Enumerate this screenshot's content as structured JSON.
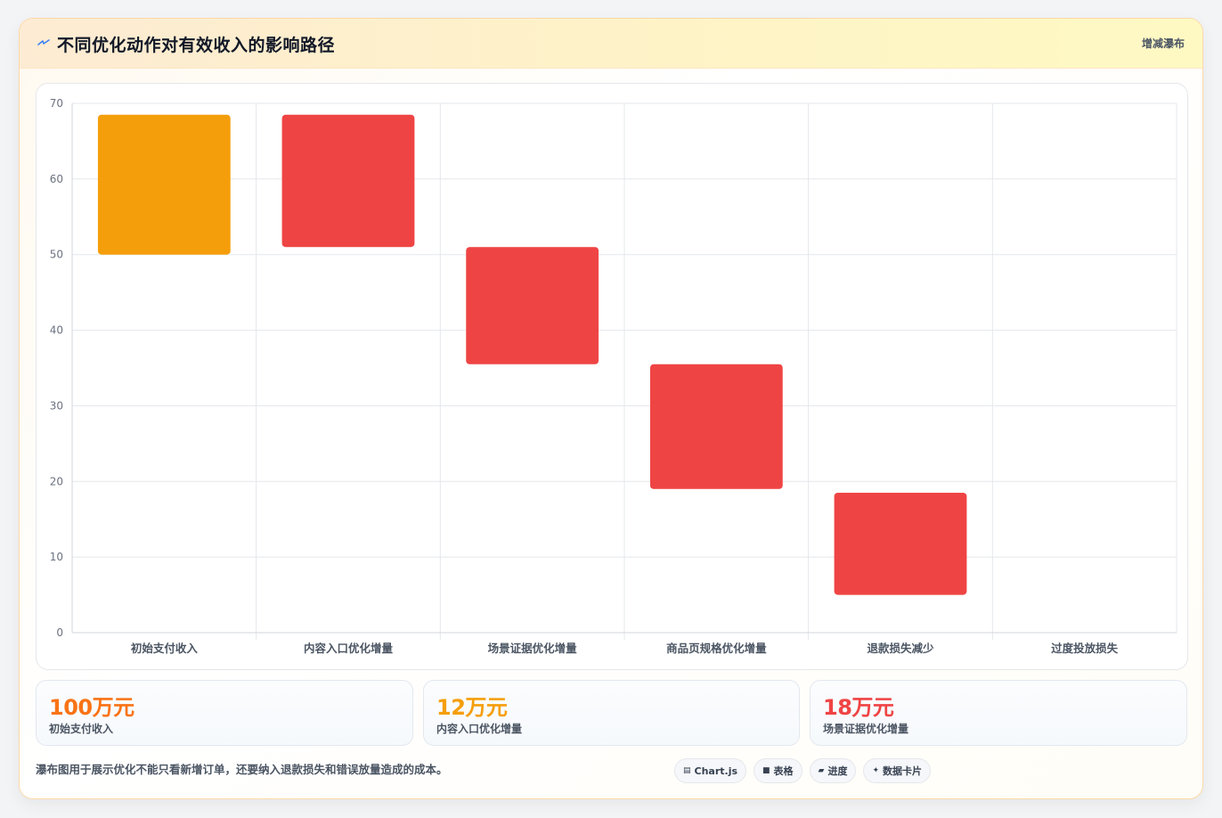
{
  "header": {
    "icon": "lightning-icon",
    "title": "不同优化动作对有效收入的影响路径",
    "tag": "增减瀑布"
  },
  "colors": {
    "base": "#f59e0b",
    "decrease": "#ef4444",
    "grid": "#e5e7eb",
    "tick": "#6b7280"
  },
  "chart_data": {
    "type": "bar",
    "subtype": "floating-waterfall",
    "categories": [
      "初始支付收入",
      "内容入口优化增量",
      "场景证据优化增量",
      "商品页规格优化增量",
      "退款损失减少",
      "过度投放损失"
    ],
    "ranges": [
      [
        50,
        68.5
      ],
      [
        51,
        68.5
      ],
      [
        35.5,
        51
      ],
      [
        19,
        35.5
      ],
      [
        5,
        18.5
      ],
      null
    ],
    "bar_colors": [
      "#f59e0b",
      "#ef4444",
      "#ef4444",
      "#ef4444",
      "#ef4444",
      "#ef4444"
    ],
    "ylim": [
      0,
      70
    ],
    "yticks": [
      0,
      10,
      20,
      30,
      40,
      50,
      60,
      70
    ],
    "grid": true,
    "legend": "none"
  },
  "stats": [
    {
      "value": "100万元",
      "label": "初始支付收入",
      "color": "#f97316"
    },
    {
      "value": "12万元",
      "label": "内容入口优化增量",
      "color": "#f59e0b"
    },
    {
      "value": "18万元",
      "label": "场景证据优化增量",
      "color": "#ef4444"
    }
  ],
  "footer": {
    "note": "瀑布图用于展示优化不能只看新增订单，还要纳入退款损失和错误放量造成的成本。",
    "pills": [
      {
        "icon": "chart-icon",
        "glyph": "▤",
        "label": "Chart.js"
      },
      {
        "icon": "table-icon",
        "glyph": "■",
        "label": "表格"
      },
      {
        "icon": "progress-icon",
        "glyph": "▰",
        "label": "进度"
      },
      {
        "icon": "sparkle-icon",
        "glyph": "✦",
        "label": "数据卡片"
      }
    ]
  }
}
